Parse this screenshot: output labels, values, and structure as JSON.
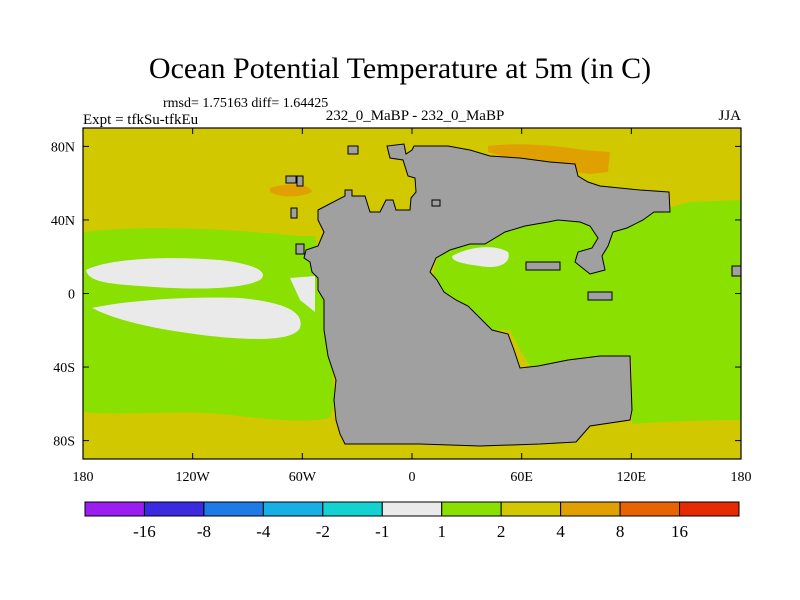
{
  "header": {
    "title": "Ocean Potential Temperature at 5m (in C)",
    "stats": "rmsd= 1.75163 diff= 1.64425",
    "experiment": "Expt = tfkSu-tfkEu",
    "subtitle": "232_0_MaBP - 232_0_MaBP",
    "season": "JJA"
  },
  "map": {
    "lon_range": [
      -180,
      180
    ],
    "lat_range": [
      -90,
      90
    ],
    "lon_ticks": [
      {
        "value": -180,
        "label": "180"
      },
      {
        "value": -120,
        "label": "120W"
      },
      {
        "value": -60,
        "label": "60W"
      },
      {
        "value": 0,
        "label": "0"
      },
      {
        "value": 60,
        "label": "60E"
      },
      {
        "value": 120,
        "label": "120E"
      },
      {
        "value": 180,
        "label": "180"
      }
    ],
    "lat_ticks": [
      {
        "value": 80,
        "label": "80N"
      },
      {
        "value": 40,
        "label": "40N"
      },
      {
        "value": 0,
        "label": "0"
      },
      {
        "value": -40,
        "label": "40S"
      },
      {
        "value": -80,
        "label": "80S"
      }
    ],
    "land_color": "#a0a0a0"
  },
  "colorbar": {
    "colors": [
      "#9a1ef0",
      "#3a2ae0",
      "#1e7ae6",
      "#18aee6",
      "#14d2d2",
      "#eaeaea",
      "#8ae000",
      "#d2c800",
      "#e0a000",
      "#e86400",
      "#e62a00"
    ],
    "labels": [
      "-16",
      "-8",
      "-4",
      "-2",
      "-1",
      "1",
      "2",
      "4",
      "8",
      "16"
    ]
  }
}
